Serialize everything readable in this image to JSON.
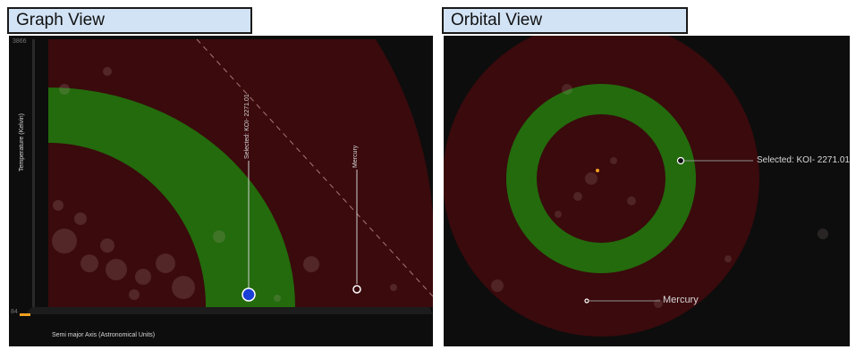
{
  "graph_view": {
    "tab_title": "Graph View",
    "y_axis": {
      "label": "Temperature (Kelvin)",
      "max_tick": "3866",
      "min_tick": "84"
    },
    "x_axis": {
      "label": "Semi major Axis (Astronomical Units)"
    },
    "selected_label": "Selected: KOI- 2271.01",
    "reference_label": "Mercury"
  },
  "orbital_view": {
    "tab_title": "Orbital View",
    "selected_label": "Selected: KOI- 2271.01",
    "reference_label": "Mercury"
  },
  "colors": {
    "background": "#0d0d0d",
    "outer_zone": "#3a0a0d",
    "habitable_zone": "#236b0d",
    "tab_fill": "#d2e3f5",
    "selected_planet": "#1a3fd6",
    "star": "#f0a020"
  }
}
